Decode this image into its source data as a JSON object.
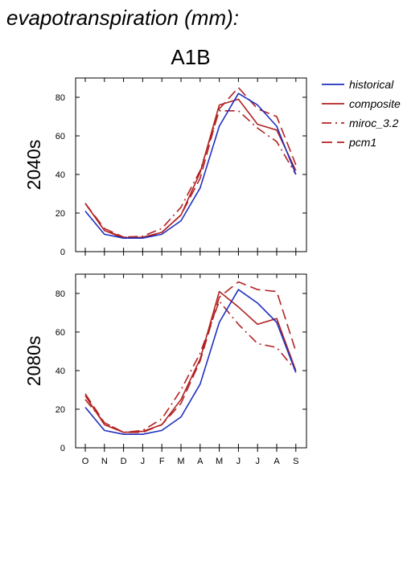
{
  "header": {
    "title": "evapotranspiration (mm):",
    "scenario": "A1B"
  },
  "legend": {
    "items": [
      {
        "name": "historical",
        "color": "#1f2fbf",
        "dash": "solid"
      },
      {
        "name": "composite",
        "color": "#b22222",
        "dash": "solid"
      },
      {
        "name": "miroc_3.2",
        "color": "#b22222",
        "dash": "dashdot"
      },
      {
        "name": "pcm1",
        "color": "#b22222",
        "dash": "dash"
      }
    ]
  },
  "chart_data": [
    {
      "type": "line",
      "row_label": "2040s",
      "categories": [
        "O",
        "N",
        "D",
        "J",
        "F",
        "M",
        "A",
        "M",
        "J",
        "J",
        "A",
        "S"
      ],
      "ylim": [
        0,
        90
      ],
      "yticks": [
        "0",
        "20",
        "40",
        "60",
        "80"
      ],
      "series": [
        {
          "name": "historical",
          "values": [
            21,
            9,
            7,
            7,
            9,
            16,
            33,
            65,
            82,
            76,
            65,
            40
          ]
        },
        {
          "name": "composite",
          "values": [
            25,
            11,
            7,
            7.5,
            10,
            19,
            41,
            76,
            79,
            66,
            63,
            42
          ]
        },
        {
          "name": "miroc_3.2",
          "values": [
            25,
            11,
            7.5,
            8,
            12,
            23,
            42,
            73,
            73,
            64,
            57,
            40
          ]
        },
        {
          "name": "pcm1",
          "values": [
            25,
            12,
            7.5,
            7,
            10,
            19,
            38,
            74,
            85,
            74,
            70,
            45
          ]
        }
      ]
    },
    {
      "type": "line",
      "row_label": "2080s",
      "categories": [
        "O",
        "N",
        "D",
        "J",
        "F",
        "M",
        "A",
        "M",
        "J",
        "J",
        "A",
        "S"
      ],
      "ylim": [
        0,
        90
      ],
      "yticks": [
        "0",
        "20",
        "40",
        "60",
        "80"
      ],
      "series": [
        {
          "name": "historical",
          "values": [
            21,
            9,
            7,
            7,
            9,
            16,
            33,
            65,
            82,
            75,
            65,
            39
          ]
        },
        {
          "name": "composite",
          "values": [
            27,
            12,
            8,
            8.5,
            12,
            25,
            46,
            81,
            73,
            64,
            67,
            40
          ]
        },
        {
          "name": "miroc_3.2",
          "values": [
            25,
            13,
            8,
            9,
            15,
            30,
            49,
            76,
            64,
            54,
            52,
            40
          ]
        },
        {
          "name": "pcm1",
          "values": [
            28,
            13,
            8,
            8,
            12,
            23,
            45,
            78,
            86,
            82,
            81,
            50
          ]
        }
      ]
    }
  ]
}
